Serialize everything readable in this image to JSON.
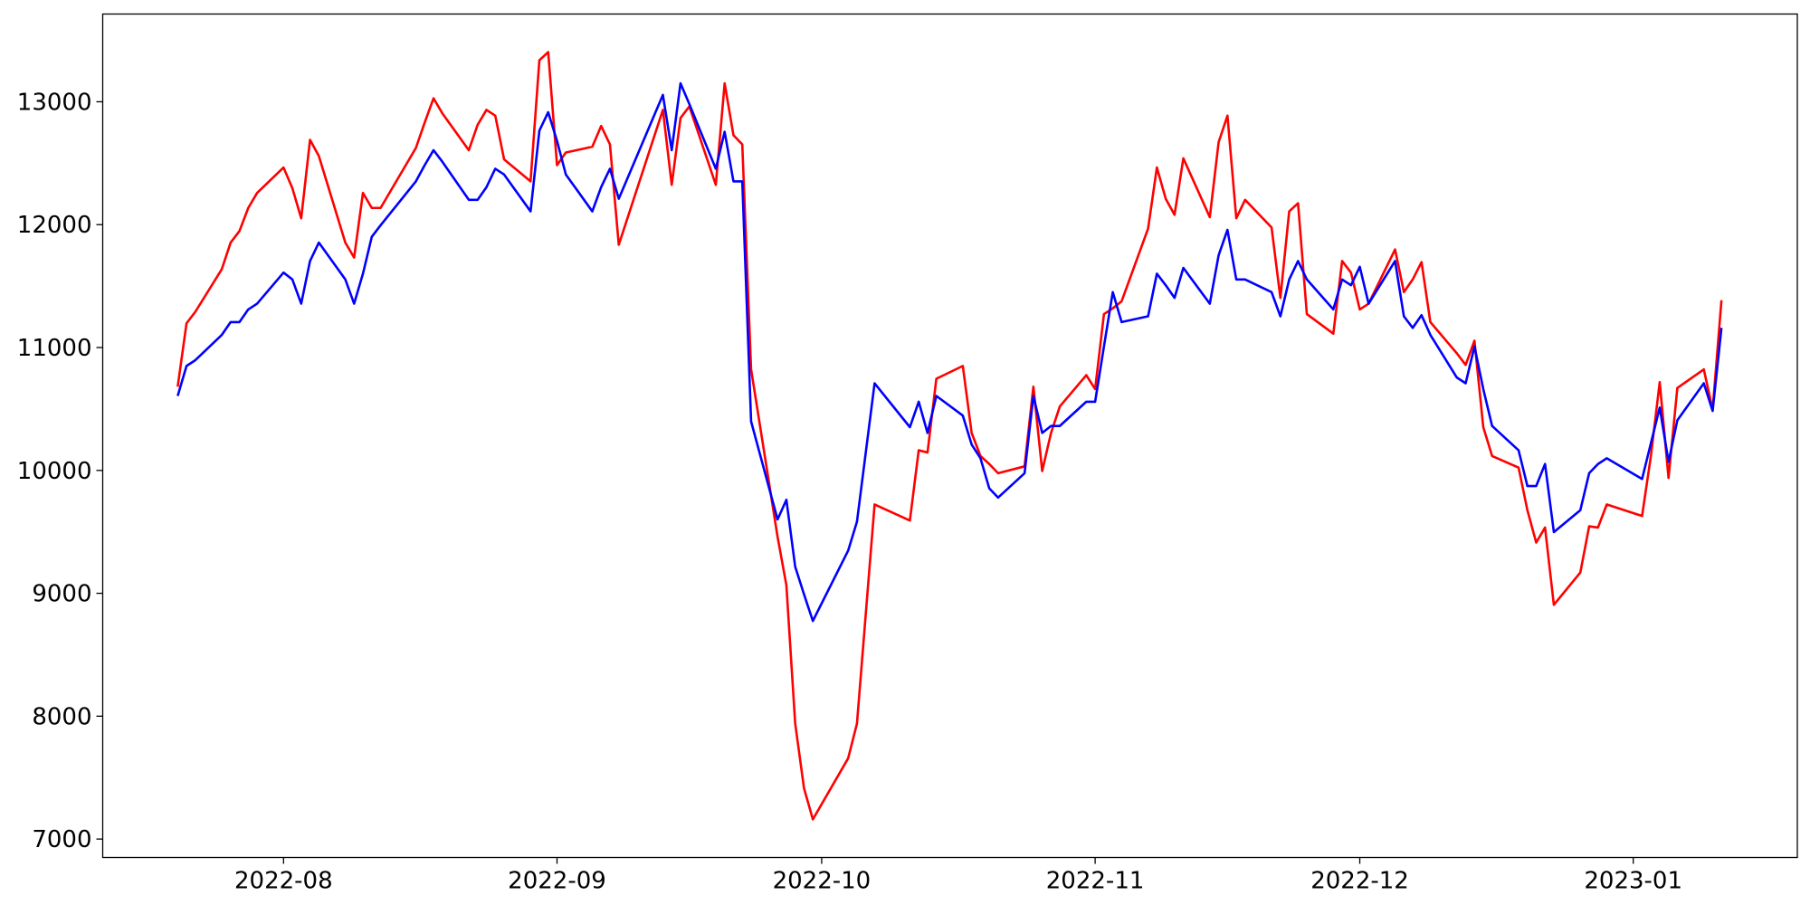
{
  "chart_data": {
    "type": "line",
    "x": [
      19193,
      19194,
      19195,
      19198,
      19199,
      19200,
      19201,
      19202,
      19205,
      19206,
      19207,
      19208,
      19209,
      19212,
      19213,
      19214,
      19215,
      19216,
      19220,
      19221,
      19222,
      19223,
      19226,
      19227,
      19228,
      19229,
      19230,
      19233,
      19234,
      19235,
      19236,
      19237,
      19240,
      19241,
      19242,
      19243,
      19248,
      19249,
      19250,
      19251,
      19254,
      19255,
      19256,
      19257,
      19258,
      19261,
      19262,
      19263,
      19264,
      19265,
      19269,
      19270,
      19271,
      19272,
      19276,
      19277,
      19278,
      19279,
      19282,
      19283,
      19284,
      19285,
      19286,
      19289,
      19290,
      19291,
      19292,
      19293,
      19296,
      19297,
      19298,
      19299,
      19300,
      19303,
      19304,
      19305,
      19306,
      19307,
      19310,
      19311,
      19312,
      19313,
      19314,
      19317,
      19318,
      19319,
      19320,
      19321,
      19324,
      19325,
      19326,
      19327,
      19328,
      19331,
      19332,
      19333,
      19334,
      19335,
      19338,
      19339,
      19340,
      19341,
      19342,
      19345,
      19346,
      19347,
      19348,
      19349,
      19352,
      19353,
      19354,
      19355,
      19359,
      19360,
      19361,
      19362,
      19363,
      19366,
      19367,
      19368
    ],
    "series": [
      {
        "color": "#ff0000",
        "values": [
          10681,
          11197,
          11291,
          11638,
          11854,
          11948,
          12136,
          12258,
          12465,
          12296,
          12052,
          12690,
          12559,
          11854,
          11732,
          12258,
          12136,
          12136,
          12624,
          12831,
          13028,
          12906,
          12606,
          12812,
          12934,
          12887,
          12531,
          12352,
          13338,
          13404,
          12484,
          12587,
          12634,
          12803,
          12653,
          11836,
          12934,
          12324,
          12868,
          12962,
          12324,
          13150,
          12728,
          12653,
          10822,
          9460,
          9066,
          7939,
          7413,
          7160,
          7657,
          7939,
          8832,
          9723,
          9592,
          10164,
          10146,
          10746,
          10850,
          10305,
          10117,
          10052,
          9977,
          10033,
          10681,
          9995,
          10305,
          10521,
          10775,
          10662,
          11272,
          11319,
          11376,
          11967,
          12465,
          12211,
          12080,
          12540,
          12061,
          12671,
          12887,
          12052,
          12202,
          11977,
          11404,
          12108,
          12174,
          11272,
          11113,
          11704,
          11610,
          11310,
          11357,
          11798,
          11451,
          11554,
          11695,
          11207,
          10953,
          10859,
          11056,
          10352,
          10117,
          10023,
          9676,
          9413,
          9535,
          8906,
          9169,
          9545,
          9535,
          9723,
          9629,
          10117,
          10718,
          9939,
          10671,
          10822,
          10493,
          11385
        ]
      },
      {
        "color": "#0000ff",
        "values": [
          10606,
          10850,
          10897,
          11103,
          11207,
          11207,
          11310,
          11357,
          11610,
          11554,
          11357,
          11704,
          11854,
          11554,
          11357,
          11601,
          11901,
          11995,
          12352,
          12484,
          12606,
          12512,
          12202,
          12202,
          12305,
          12455,
          12408,
          12108,
          12765,
          12915,
          12681,
          12408,
          12108,
          12305,
          12455,
          12211,
          13056,
          12606,
          13150,
          12981,
          12455,
          12756,
          12352,
          12352,
          10399,
          9601,
          9761,
          9216,
          8991,
          8775,
          9347,
          9582,
          10146,
          10709,
          10352,
          10559,
          10305,
          10606,
          10446,
          10211,
          10099,
          9854,
          9779,
          9977,
          10606,
          10305,
          10362,
          10362,
          10559,
          10559,
          11009,
          11451,
          11207,
          11254,
          11601,
          11507,
          11404,
          11648,
          11357,
          11751,
          11958,
          11554,
          11554,
          11451,
          11254,
          11554,
          11704,
          11554,
          11310,
          11554,
          11507,
          11657,
          11357,
          11704,
          11254,
          11160,
          11263,
          11103,
          10756,
          10709,
          11009,
          10662,
          10362,
          10164,
          9873,
          9873,
          10052,
          9498,
          9676,
          9977,
          10052,
          10099,
          9930,
          10221,
          10512,
          10070,
          10408,
          10709,
          10484,
          11160
        ]
      }
    ],
    "xlim": [
      19184.5,
      19376.6
    ],
    "xticks": [
      {
        "value": 19205,
        "label": "2022-08"
      },
      {
        "value": 19236,
        "label": "2022-09"
      },
      {
        "value": 19266,
        "label": "2022-10"
      },
      {
        "value": 19297,
        "label": "2022-11"
      },
      {
        "value": 19327,
        "label": "2022-12"
      },
      {
        "value": 19358,
        "label": "2023-01"
      }
    ],
    "ylim": [
      6850,
      13714
    ],
    "yticks": [
      7000,
      8000,
      9000,
      10000,
      11000,
      12000,
      13000
    ]
  }
}
